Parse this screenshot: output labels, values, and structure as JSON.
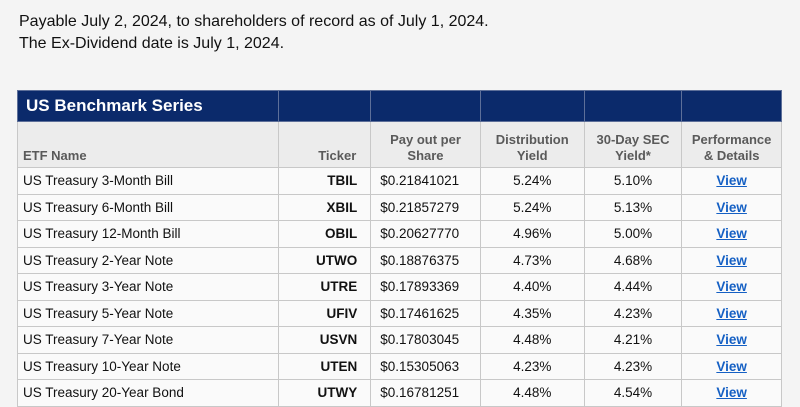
{
  "intro": {
    "line1": "Payable July 2, 2024, to shareholders of record as of July 1, 2024.",
    "line2": "The Ex-Dividend date is July 1, 2024."
  },
  "table": {
    "title": "US Benchmark Series",
    "headers": {
      "name": "ETF Name",
      "ticker": "Ticker",
      "payout": "Pay out per Share",
      "distribution": "Distribution Yield",
      "sec": "30-Day SEC Yield*",
      "performance": "Performance & Details"
    },
    "rows": [
      {
        "name": "US Treasury 3-Month Bill",
        "ticker": "TBIL",
        "payout": "$0.21841021",
        "distribution": "5.24%",
        "sec": "5.10%",
        "link": "View"
      },
      {
        "name": "US Treasury 6-Month Bill",
        "ticker": "XBIL",
        "payout": "$0.21857279",
        "distribution": "5.24%",
        "sec": "5.13%",
        "link": "View"
      },
      {
        "name": "US Treasury 12-Month Bill",
        "ticker": "OBIL",
        "payout": "$0.20627770",
        "distribution": "4.96%",
        "sec": "5.00%",
        "link": "View"
      },
      {
        "name": "US Treasury 2-Year Note",
        "ticker": "UTWO",
        "payout": "$0.18876375",
        "distribution": "4.73%",
        "sec": "4.68%",
        "link": "View"
      },
      {
        "name": "US Treasury 3-Year Note",
        "ticker": "UTRE",
        "payout": "$0.17893369",
        "distribution": "4.40%",
        "sec": "4.44%",
        "link": "View"
      },
      {
        "name": "US Treasury 5-Year Note",
        "ticker": "UFIV",
        "payout": "$0.17461625",
        "distribution": "4.35%",
        "sec": "4.23%",
        "link": "View"
      },
      {
        "name": "US Treasury 7-Year Note",
        "ticker": "USVN",
        "payout": "$0.17803045",
        "distribution": "4.48%",
        "sec": "4.21%",
        "link": "View"
      },
      {
        "name": "US Treasury 10-Year Note",
        "ticker": "UTEN",
        "payout": "$0.15305063",
        "distribution": "4.23%",
        "sec": "4.23%",
        "link": "View"
      },
      {
        "name": "US Treasury 20-Year Bond",
        "ticker": "UTWY",
        "payout": "$0.16781251",
        "distribution": "4.48%",
        "sec": "4.54%",
        "link": "View"
      }
    ]
  },
  "colors": {
    "title_bar": "#0b2a6b",
    "link": "#1560c4"
  }
}
